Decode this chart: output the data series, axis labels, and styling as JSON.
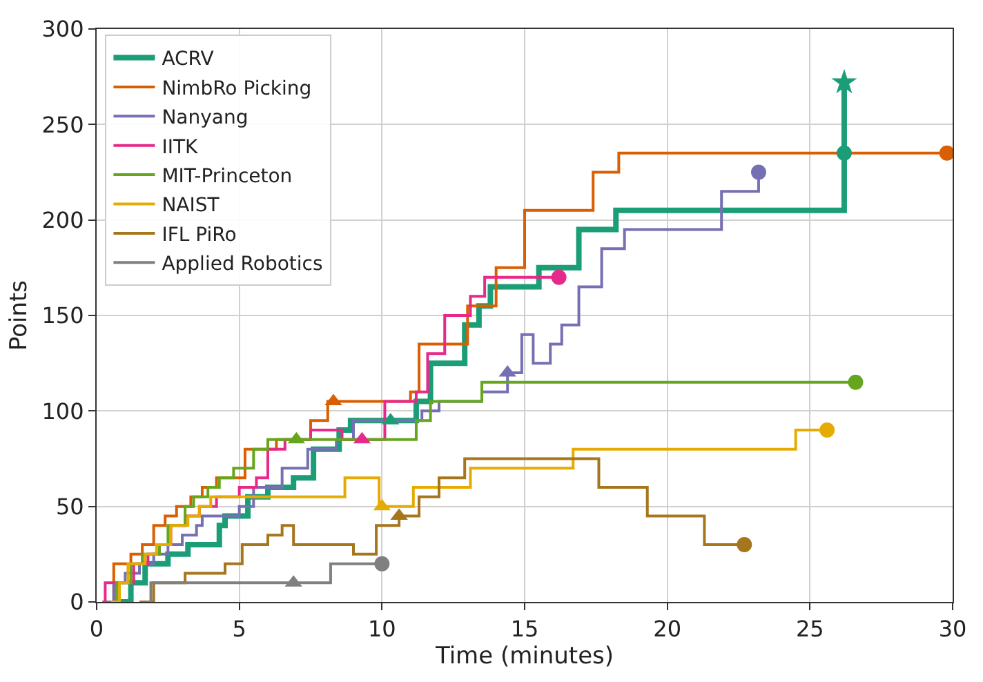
{
  "chart_data": {
    "type": "step",
    "xlabel": "Time (minutes)",
    "ylabel": "Points",
    "xlim": [
      0,
      30
    ],
    "ylim": [
      0,
      300
    ],
    "xticks": [
      0,
      5,
      10,
      15,
      20,
      25,
      30
    ],
    "yticks": [
      0,
      50,
      100,
      150,
      200,
      250,
      300
    ],
    "grid": true,
    "legend": "top left",
    "series": [
      {
        "name": "ACRV",
        "color": "#1b9e77",
        "x": [
          0.8,
          1.2,
          1.7,
          2.5,
          3.2,
          4.3,
          4.5,
          5.3,
          6.0,
          6.9,
          7.6,
          8.5,
          8.9,
          11.2,
          11.7,
          12.9,
          13.4,
          13.8,
          15.5,
          16.9,
          18.2,
          26.2,
          26.2
        ],
        "values": [
          0,
          10,
          20,
          25,
          30,
          40,
          45,
          55,
          60,
          65,
          80,
          90,
          95,
          105,
          125,
          145,
          155,
          165,
          175,
          195,
          205,
          205,
          272
        ]
      },
      {
        "name": "NimbRo Picking",
        "color": "#d95f02",
        "x": [
          0.3,
          0.6,
          1.2,
          1.6,
          2.0,
          2.4,
          2.8,
          3.3,
          3.7,
          4.2,
          5.2,
          6.3,
          7.5,
          8.1,
          11.0,
          11.3,
          13.0,
          14.0,
          15.0,
          17.4,
          18.3,
          29.8
        ],
        "values": [
          0,
          20,
          25,
          30,
          40,
          45,
          50,
          55,
          60,
          65,
          80,
          85,
          95,
          105,
          110,
          135,
          155,
          175,
          205,
          225,
          235,
          235
        ]
      },
      {
        "name": "Nanyang",
        "color": "#7570b3",
        "x": [
          0.4,
          0.6,
          1.0,
          1.5,
          2.0,
          2.5,
          3.0,
          3.5,
          3.7,
          5.0,
          5.5,
          6.5,
          7.4,
          8.4,
          9.0,
          11.4,
          12.0,
          13.5,
          14.4,
          14.9,
          15.3,
          15.9,
          16.3,
          16.9,
          17.7,
          18.5,
          21.9,
          23.2
        ],
        "values": [
          0,
          10,
          15,
          20,
          25,
          30,
          35,
          40,
          45,
          50,
          60,
          70,
          80,
          85,
          95,
          100,
          105,
          110,
          120,
          140,
          125,
          135,
          145,
          165,
          185,
          195,
          215,
          225
        ]
      },
      {
        "name": "IITK",
        "color": "#e7298a",
        "x": [
          0.2,
          0.3,
          0.9,
          1.3,
          1.8,
          2.2,
          2.6,
          3.1,
          3.6,
          4.2,
          5.0,
          5.6,
          6.0,
          6.6,
          7.5,
          8.6,
          10.1,
          11.2,
          11.6,
          12.2,
          13.1,
          13.6,
          16.2
        ],
        "values": [
          0,
          10,
          10,
          20,
          25,
          30,
          40,
          45,
          50,
          55,
          60,
          65,
          80,
          85,
          90,
          85,
          105,
          110,
          130,
          150,
          160,
          170,
          170
        ]
      },
      {
        "name": "MIT-Princeton",
        "color": "#66a61e",
        "x": [
          0.5,
          0.7,
          1.2,
          1.6,
          2.2,
          2.5,
          3.1,
          3.4,
          3.9,
          4.3,
          4.8,
          5.5,
          6.0,
          11.2,
          11.7,
          13.5,
          26.6
        ],
        "values": [
          0,
          10,
          20,
          25,
          30,
          40,
          50,
          55,
          60,
          65,
          70,
          80,
          85,
          95,
          105,
          115,
          115
        ]
      },
      {
        "name": "NAIST",
        "color": "#e6ab02",
        "x": [
          0.5,
          0.8,
          1.1,
          1.7,
          2.1,
          2.6,
          3.2,
          3.6,
          4.0,
          8.7,
          9.9,
          11.1,
          13.1,
          16.7,
          24.5,
          25.6
        ],
        "values": [
          0,
          10,
          20,
          25,
          30,
          40,
          45,
          50,
          55,
          65,
          50,
          60,
          70,
          80,
          90,
          90
        ]
      },
      {
        "name": "IFL PiRo",
        "color": "#a6761d",
        "x": [
          1.5,
          2.0,
          3.1,
          4.5,
          5.1,
          6.0,
          6.5,
          6.9,
          9.0,
          9.8,
          10.6,
          11.3,
          12.0,
          12.9,
          17.6,
          19.3,
          21.3,
          22.7
        ],
        "values": [
          0,
          10,
          15,
          20,
          30,
          35,
          40,
          30,
          25,
          40,
          45,
          55,
          65,
          75,
          60,
          45,
          30,
          30
        ]
      },
      {
        "name": "Applied Robotics",
        "color": "#808080",
        "x": [
          1.8,
          1.9,
          8.2,
          10.0
        ],
        "values": [
          0,
          10,
          20,
          20
        ]
      },
      {
        "type": "scatter",
        "marker": "triangle",
        "x": [
          10.3,
          8.3,
          14.4,
          9.3,
          7.0,
          10.0,
          10.6,
          6.9
        ],
        "values": [
          95,
          105,
          120,
          85,
          85,
          50,
          45,
          10
        ],
        "colors": [
          "#1b9e77",
          "#d95f02",
          "#7570b3",
          "#e7298a",
          "#66a61e",
          "#e6ab02",
          "#a6761d",
          "#808080"
        ]
      },
      {
        "type": "scatter",
        "marker": "circle",
        "x": [
          26.2,
          29.8,
          23.2,
          16.2,
          26.6,
          25.6,
          22.7,
          10.0
        ],
        "values": [
          235,
          235,
          225,
          170,
          115,
          90,
          30,
          20
        ],
        "colors": [
          "#1b9e77",
          "#d95f02",
          "#7570b3",
          "#e7298a",
          "#66a61e",
          "#e6ab02",
          "#a6761d",
          "#808080"
        ]
      },
      {
        "type": "scatter",
        "marker": "star",
        "x": [
          26.2
        ],
        "values": [
          272
        ],
        "colors": [
          "#1b9e77"
        ]
      }
    ]
  }
}
